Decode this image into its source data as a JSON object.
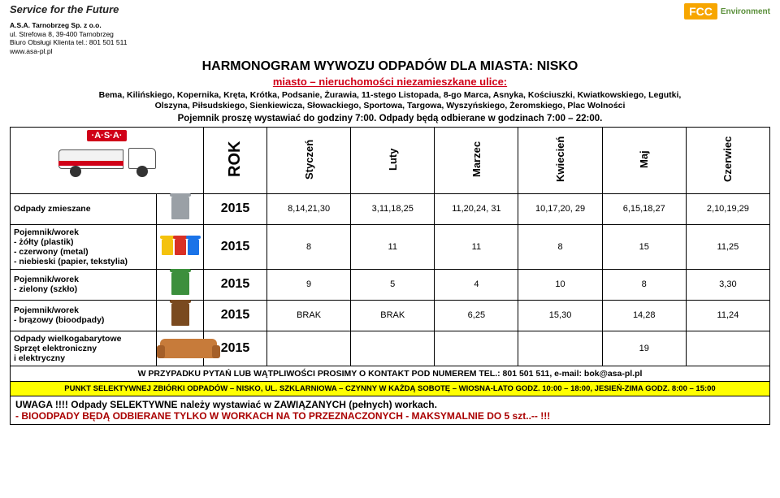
{
  "header": {
    "slogan": "Service for the Future",
    "company": "A.S.A. Tarnobrzeg Sp. z o.o.",
    "addr1": "ul. Strefowa 8, 39-400 Tarnobrzeg",
    "addr2": "Biuro Obsługi Klienta tel.: 801 501 511",
    "web": "www.asa-pl.pl",
    "logo_brand": "FCC",
    "logo_sub": "Environment"
  },
  "title": "HARMONOGRAM WYWOZU ODPADÓW DLA MIASTA: NISKO",
  "subtitle": "miasto – nieruchomości niezamieszkane ulice:",
  "streets_line1": "Bema, Kilińskiego, Kopernika, Kręta, Krótka, Podsanie, Żurawia, 11-stego Listopada, 8-go Marca, Asnyka, Kościuszki, Kwiatkowskiego, Legutki,",
  "streets_line2": "Olszyna, Piłsudskiego, Sienkiewicza, Słowackiego, Sportowa, Targowa, Wyszyńskiego, Żeromskiego, Plac Wolności",
  "notice": "Pojemnik proszę wystawiać do godziny 7:00. Odpady będą odbierane w godzinach 7:00 – 22:00.",
  "columns": {
    "rok": "ROK",
    "months": [
      "Styczeń",
      "Luty",
      "Marzec",
      "Kwiecień",
      "Maj",
      "Czerwiec"
    ]
  },
  "asa_badge": "·A·S·A·",
  "rows": [
    {
      "label": "Odpady zmieszane",
      "icon": "bin-grey",
      "year": "2015",
      "vals": [
        "8,14,21,30",
        "3,11,18,25",
        "11,20,24, 31",
        "10,17,20, 29",
        "6,15,18,27",
        "2,10,19,29"
      ]
    },
    {
      "label": "Pojemnik/worek\n- żółty (plastik)\n- czerwony (metal)\n- niebieski (papier, tekstylia)",
      "icon": "bins-multi",
      "year": "2015",
      "vals": [
        "8",
        "11",
        "11",
        "8",
        "15",
        "11,25"
      ]
    },
    {
      "label": "Pojemnik/worek\n- zielony (szkło)",
      "icon": "bin-green",
      "year": "2015",
      "vals": [
        "9",
        "5",
        "4",
        "10",
        "8",
        "3,30"
      ]
    },
    {
      "label": "Pojemnik/worek\n- brązowy (bioodpady)",
      "icon": "bin-brown",
      "year": "2015",
      "vals": [
        "BRAK",
        "BRAK",
        "6,25",
        "15,30",
        "14,28",
        "11,24"
      ]
    },
    {
      "label": "Odpady wielkogabarytowe\nSprzęt elektroniczny\ni elektryczny",
      "icon": "couch",
      "year": "2015",
      "vals": [
        "",
        "",
        "",
        "",
        "19",
        ""
      ]
    }
  ],
  "footer": {
    "contact": "W PRZYPADKU PYTAŃ LUB WĄTPLIWOŚCI PROSIMY O KONTAKT POD NUMEREM TEL.: 801 501 511, e-mail: bok@asa-pl.pl",
    "pszok": "PUNKT SELEKTYWNEJ ZBIÓRKI ODPADÓW – NISKO, UL. SZKLARNIOWA – CZYNNY W KAŻDĄ SOBOTĘ – WIOSNA-LATO GODZ. 10:00 – 18:00, JESIEŃ-ZIMA GODZ. 8:00 – 15:00",
    "uwaga": "UWAGA !!!! Odpady SELEKTYWNE należy wystawiać w  ZAWIĄZANYCH (pełnych) workach.",
    "bio": "-    BIOODPADY  BĘDĄ ODBIERANE TYLKO W WORKACH NA TO PRZEZNACZONYCH - MAKSYMALNIE DO 5 szt..-- !!!"
  },
  "colors": {
    "red": "#d00018",
    "yellow_hl": "#ffff00",
    "text": "#000000"
  }
}
